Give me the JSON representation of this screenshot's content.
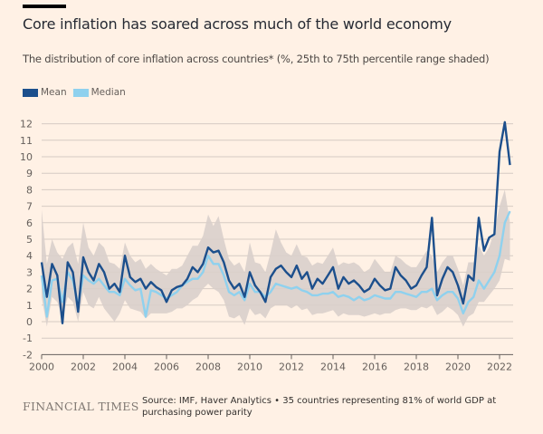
{
  "header": {
    "title": "Core inflation has soared across much of the world economy",
    "subtitle": "The distribution of core inflation across countries* (%, 25th to 75th percentile range shaded)"
  },
  "legend": [
    {
      "label": "Mean",
      "color": "#1c4f8c"
    },
    {
      "label": "Median",
      "color": "#8fd1ee"
    }
  ],
  "footer": {
    "logo": "FINANCIAL TIMES",
    "source": "Source: IMF, Haver Analytics • 35 countries representing 81% of world GDP at purchasing power parity"
  },
  "chart_data": {
    "type": "line",
    "title": "Core inflation has soared across much of the world economy",
    "subtitle": "The distribution of core inflation across countries* (%, 25th to 75th percentile range shaded)",
    "xlabel": "",
    "ylabel": "%",
    "xlim": [
      2000,
      2022.6
    ],
    "ylim": [
      -2,
      12
    ],
    "grid": true,
    "legend_position": "top-left",
    "x_ticks": [
      "2000",
      "2002",
      "2004",
      "2006",
      "2008",
      "2010",
      "2012",
      "2014",
      "2016",
      "2018",
      "2020",
      "2022"
    ],
    "y_ticks": [
      "-2",
      "-1",
      "0",
      "1",
      "2",
      "3",
      "4",
      "5",
      "6",
      "7",
      "8",
      "9",
      "10",
      "11",
      "12"
    ],
    "colors": {
      "mean": "#1c4f8c",
      "median": "#8fd1ee",
      "range": "#d9cfcb",
      "grid": "#d6cbc3",
      "axis": "#66605c"
    },
    "x": [
      2000.0,
      2000.25,
      2000.5,
      2000.75,
      2001.0,
      2001.25,
      2001.5,
      2001.75,
      2002.0,
      2002.25,
      2002.5,
      2002.75,
      2003.0,
      2003.25,
      2003.5,
      2003.75,
      2004.0,
      2004.25,
      2004.5,
      2004.75,
      2005.0,
      2005.25,
      2005.5,
      2005.75,
      2006.0,
      2006.25,
      2006.5,
      2006.75,
      2007.0,
      2007.25,
      2007.5,
      2007.75,
      2008.0,
      2008.25,
      2008.5,
      2008.75,
      2009.0,
      2009.25,
      2009.5,
      2009.75,
      2010.0,
      2010.25,
      2010.5,
      2010.75,
      2011.0,
      2011.25,
      2011.5,
      2011.75,
      2012.0,
      2012.25,
      2012.5,
      2012.75,
      2013.0,
      2013.25,
      2013.5,
      2013.75,
      2014.0,
      2014.25,
      2014.5,
      2014.75,
      2015.0,
      2015.25,
      2015.5,
      2015.75,
      2016.0,
      2016.25,
      2016.5,
      2016.75,
      2017.0,
      2017.25,
      2017.5,
      2017.75,
      2018.0,
      2018.25,
      2018.5,
      2018.75,
      2019.0,
      2019.25,
      2019.5,
      2019.75,
      2020.0,
      2020.25,
      2020.5,
      2020.75,
      2021.0,
      2021.25,
      2021.5,
      2021.75,
      2022.0,
      2022.25,
      2022.5
    ],
    "series": [
      {
        "name": "Mean",
        "values": [
          3.6,
          1.5,
          3.5,
          2.8,
          -0.1,
          3.6,
          3.0,
          0.6,
          3.9,
          3.0,
          2.5,
          3.5,
          3.0,
          2.0,
          2.3,
          1.8,
          4.0,
          2.7,
          2.4,
          2.6,
          2.0,
          2.4,
          2.1,
          1.9,
          1.2,
          1.9,
          2.1,
          2.2,
          2.6,
          3.3,
          3.0,
          3.5,
          4.5,
          4.2,
          4.3,
          3.6,
          2.5,
          2.0,
          2.3,
          1.5,
          3.0,
          2.2,
          1.8,
          1.2,
          2.7,
          3.2,
          3.4,
          3.0,
          2.7,
          3.4,
          2.6,
          3.0,
          2.0,
          2.6,
          2.3,
          2.8,
          3.3,
          2.0,
          2.7,
          2.3,
          2.5,
          2.2,
          1.8,
          2.0,
          2.6,
          2.2,
          1.9,
          2.0,
          3.3,
          2.8,
          2.5,
          2.0,
          2.2,
          2.8,
          3.3,
          6.3,
          1.6,
          2.6,
          3.3,
          3.0,
          2.2,
          1.1,
          2.8,
          2.5,
          6.3,
          4.3,
          5.1,
          5.3,
          10.3,
          12.1,
          9.5
        ]
      },
      {
        "name": "Median",
        "values": [
          2.8,
          0.3,
          2.5,
          2.6,
          1.2,
          3.0,
          2.5,
          1.0,
          2.8,
          2.5,
          2.3,
          2.6,
          2.2,
          1.8,
          1.8,
          1.6,
          2.6,
          2.2,
          1.9,
          2.0,
          0.3,
          1.9,
          1.8,
          1.6,
          1.4,
          1.6,
          1.8,
          2.2,
          2.4,
          2.6,
          2.6,
          3.0,
          4.0,
          3.5,
          3.5,
          2.8,
          1.8,
          1.6,
          1.8,
          1.3,
          2.3,
          1.8,
          1.8,
          1.5,
          1.8,
          2.3,
          2.2,
          2.1,
          2.0,
          2.1,
          1.9,
          1.8,
          1.6,
          1.6,
          1.7,
          1.7,
          1.8,
          1.5,
          1.6,
          1.5,
          1.3,
          1.5,
          1.3,
          1.4,
          1.6,
          1.5,
          1.4,
          1.4,
          1.8,
          1.8,
          1.7,
          1.6,
          1.5,
          1.8,
          1.8,
          2.0,
          1.3,
          1.6,
          1.8,
          1.8,
          1.4,
          0.5,
          1.2,
          1.5,
          2.5,
          2.0,
          2.5,
          3.0,
          4.0,
          6.0,
          6.7
        ]
      },
      {
        "name": "25th percentile",
        "values": [
          1.5,
          -0.3,
          1.5,
          1.2,
          0.2,
          1.5,
          1.2,
          0.0,
          1.8,
          1.0,
          0.8,
          1.5,
          0.8,
          0.4,
          0.0,
          0.5,
          1.3,
          0.8,
          0.7,
          0.6,
          0.2,
          0.5,
          0.5,
          0.5,
          0.5,
          0.6,
          0.8,
          0.8,
          1.0,
          1.3,
          1.5,
          2.0,
          2.3,
          2.0,
          1.8,
          1.3,
          0.3,
          0.2,
          0.4,
          -0.2,
          0.8,
          0.4,
          0.5,
          0.2,
          0.8,
          1.0,
          1.0,
          1.0,
          0.8,
          1.0,
          0.7,
          0.8,
          0.4,
          0.5,
          0.5,
          0.6,
          0.7,
          0.3,
          0.5,
          0.4,
          0.4,
          0.4,
          0.3,
          0.4,
          0.5,
          0.4,
          0.5,
          0.5,
          0.7,
          0.8,
          0.8,
          0.7,
          0.7,
          0.9,
          0.8,
          1.0,
          0.4,
          0.6,
          0.9,
          0.7,
          0.4,
          -0.3,
          0.3,
          0.5,
          1.2,
          1.2,
          1.6,
          2.0,
          2.5,
          3.8,
          3.7
        ]
      },
      {
        "name": "75th percentile",
        "values": [
          6.8,
          3.5,
          5.0,
          4.2,
          3.8,
          4.5,
          4.8,
          3.5,
          6.0,
          4.5,
          4.0,
          4.8,
          4.5,
          3.6,
          3.5,
          3.2,
          4.8,
          4.0,
          3.6,
          3.8,
          3.2,
          3.5,
          3.2,
          3.0,
          2.8,
          3.2,
          3.2,
          3.4,
          4.0,
          4.6,
          4.6,
          5.2,
          6.5,
          5.8,
          6.4,
          5.0,
          3.8,
          3.4,
          3.6,
          3.0,
          4.8,
          3.6,
          3.5,
          3.0,
          4.2,
          5.6,
          4.8,
          4.2,
          4.0,
          4.7,
          4.0,
          3.9,
          3.4,
          3.6,
          3.5,
          4.0,
          4.5,
          3.4,
          3.6,
          3.5,
          3.6,
          3.4,
          3.0,
          3.2,
          3.8,
          3.4,
          3.0,
          3.0,
          4.0,
          3.8,
          3.5,
          3.3,
          3.3,
          3.8,
          4.3,
          4.0,
          3.0,
          3.6,
          4.0,
          4.0,
          3.2,
          2.2,
          3.6,
          3.6,
          4.6,
          4.0,
          4.5,
          5.5,
          7.0,
          8.0,
          6.0
        ]
      }
    ]
  }
}
